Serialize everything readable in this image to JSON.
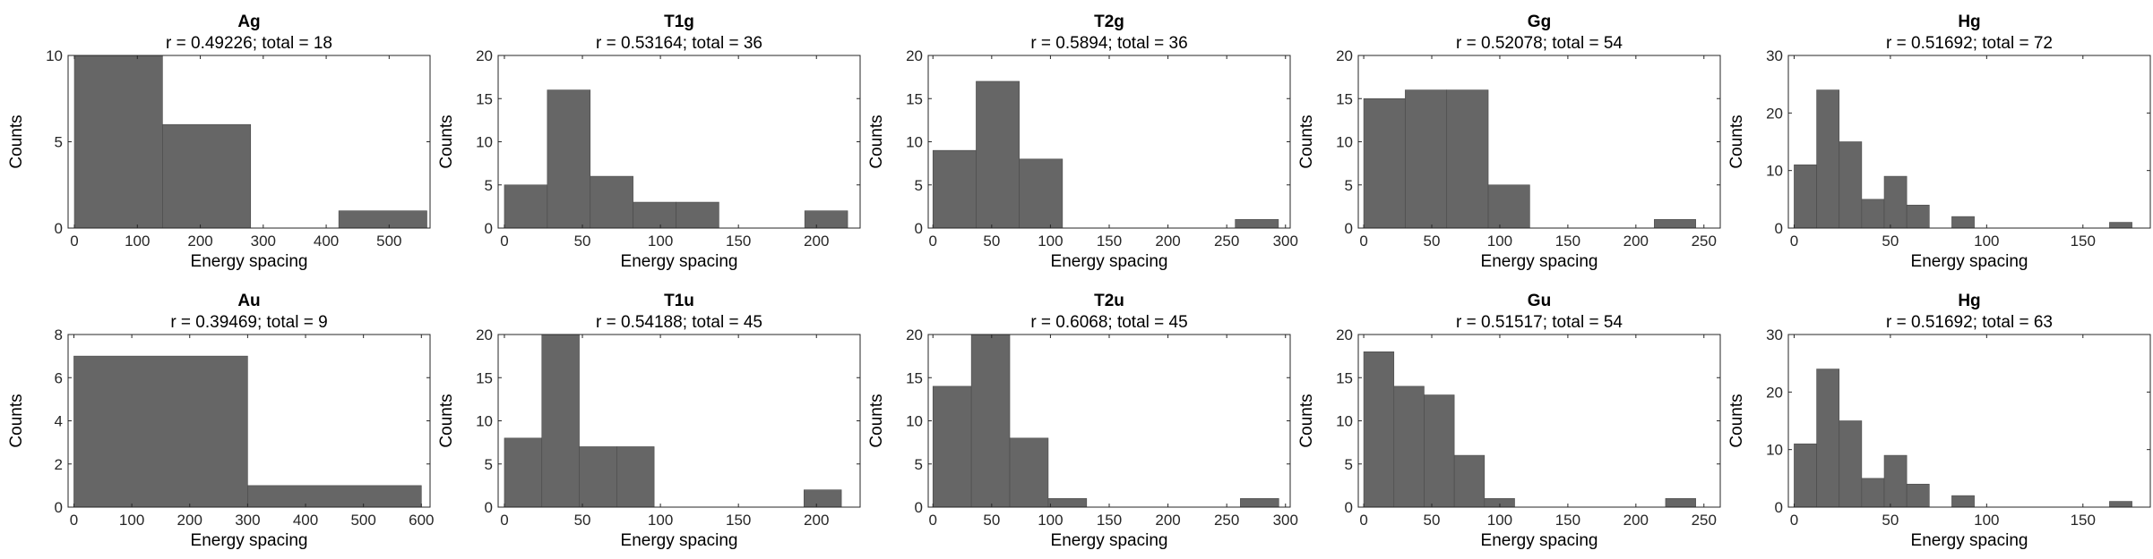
{
  "colors": {
    "bar": "#666666",
    "axis": "#262626",
    "background": "#ffffff"
  },
  "chart_data": [
    {
      "type": "bar",
      "title": "Ag",
      "subtitle": "r = 0.49226; total = 18",
      "xlabel": "Energy spacing",
      "ylabel": "Counts",
      "xlim": [
        -10,
        565
      ],
      "ylim": [
        0,
        10
      ],
      "xticks": [
        0,
        100,
        200,
        300,
        400,
        500
      ],
      "yticks": [
        0,
        5,
        10
      ],
      "bin_edges": [
        0,
        140,
        280,
        420,
        560
      ],
      "values": [
        10,
        6,
        0,
        1
      ]
    },
    {
      "type": "bar",
      "title": "T1g",
      "subtitle": "r = 0.53164; total = 36",
      "xlabel": "Energy spacing",
      "ylabel": "Counts",
      "xlim": [
        -4,
        228
      ],
      "ylim": [
        0,
        20
      ],
      "xticks": [
        0,
        50,
        100,
        150,
        200
      ],
      "yticks": [
        0,
        5,
        10,
        15,
        20
      ],
      "bin_edges": [
        0,
        27.5,
        55,
        82.5,
        110,
        137.5,
        165,
        192.5,
        220
      ],
      "values": [
        5,
        16,
        6,
        3,
        3,
        0,
        0,
        2
      ]
    },
    {
      "type": "bar",
      "title": "T2g",
      "subtitle": "r = 0.5894; total = 36",
      "xlabel": "Energy spacing",
      "ylabel": "Counts",
      "xlim": [
        -4,
        304
      ],
      "ylim": [
        0,
        20
      ],
      "xticks": [
        0,
        50,
        100,
        150,
        200,
        250,
        300
      ],
      "yticks": [
        0,
        5,
        10,
        15,
        20
      ],
      "bin_edges": [
        0,
        36.75,
        73.5,
        110.25,
        147,
        183.75,
        220.5,
        257.25,
        294
      ],
      "values": [
        9,
        17,
        8,
        0,
        0,
        0,
        0,
        1
      ]
    },
    {
      "type": "bar",
      "title": "Gg",
      "subtitle": "r = 0.52078; total = 54",
      "xlabel": "Energy spacing",
      "ylabel": "Counts",
      "xlim": [
        -4,
        262
      ],
      "ylim": [
        0,
        20
      ],
      "xticks": [
        0,
        50,
        100,
        150,
        200,
        250
      ],
      "yticks": [
        0,
        5,
        10,
        15,
        20
      ],
      "bin_edges": [
        0,
        30.5,
        61,
        91.5,
        122,
        152.5,
        183,
        213.5,
        244
      ],
      "values": [
        15,
        16,
        16,
        5,
        0,
        0,
        0,
        1
      ]
    },
    {
      "type": "bar",
      "title": "Hg",
      "subtitle": "r = 0.51692; total = 72",
      "xlabel": "Energy spacing",
      "ylabel": "Counts",
      "xlim": [
        -3,
        185
      ],
      "ylim": [
        0,
        30
      ],
      "xticks": [
        0,
        50,
        100,
        150
      ],
      "yticks": [
        0,
        10,
        20,
        30
      ],
      "bin_edges": [
        0,
        11.7,
        23.4,
        35.1,
        46.8,
        58.5,
        70.2,
        81.9,
        93.6,
        105.3,
        117,
        128.7,
        140.4,
        152.1,
        163.8,
        175.5
      ],
      "values": [
        11,
        24,
        15,
        5,
        9,
        4,
        0,
        2,
        0,
        0,
        0,
        0,
        0,
        0,
        1
      ]
    },
    {
      "type": "bar",
      "title": "Au",
      "subtitle": "r = 0.39469; total = 9",
      "xlabel": "Energy spacing",
      "ylabel": "Counts",
      "xlim": [
        -10,
        615
      ],
      "ylim": [
        0,
        8
      ],
      "xticks": [
        0,
        100,
        200,
        300,
        400,
        500,
        600
      ],
      "yticks": [
        0,
        2,
        4,
        6,
        8
      ],
      "bin_edges": [
        0,
        300,
        600
      ],
      "values": [
        7,
        1
      ]
    },
    {
      "type": "bar",
      "title": "T1u",
      "subtitle": "r = 0.54188; total = 45",
      "xlabel": "Energy spacing",
      "ylabel": "Counts",
      "xlim": [
        -4,
        228
      ],
      "ylim": [
        0,
        20
      ],
      "xticks": [
        0,
        50,
        100,
        150,
        200
      ],
      "yticks": [
        0,
        5,
        10,
        15,
        20
      ],
      "bin_edges": [
        0,
        24,
        48,
        72,
        96,
        120,
        144,
        168,
        192,
        216
      ],
      "values": [
        8,
        20,
        7,
        7,
        0,
        0,
        0,
        0,
        2
      ]
    },
    {
      "type": "bar",
      "title": "T2u",
      "subtitle": "r = 0.6068; total = 45",
      "xlabel": "Energy spacing",
      "ylabel": "Counts",
      "xlim": [
        -4,
        304
      ],
      "ylim": [
        0,
        20
      ],
      "xticks": [
        0,
        50,
        100,
        150,
        200,
        250,
        300
      ],
      "yticks": [
        0,
        5,
        10,
        15,
        20
      ],
      "bin_edges": [
        0,
        32.7,
        65.4,
        98.1,
        130.8,
        163.5,
        196.2,
        228.9,
        261.6,
        294.3
      ],
      "values": [
        14,
        20,
        8,
        1,
        0,
        0,
        0,
        0,
        1
      ]
    },
    {
      "type": "bar",
      "title": "Gu",
      "subtitle": "r = 0.51517; total = 54",
      "xlabel": "Energy spacing",
      "ylabel": "Counts",
      "xlim": [
        -4,
        262
      ],
      "ylim": [
        0,
        20
      ],
      "xticks": [
        0,
        50,
        100,
        150,
        200,
        250
      ],
      "yticks": [
        0,
        5,
        10,
        15,
        20
      ],
      "bin_edges": [
        0,
        22.18,
        44.36,
        66.54,
        88.72,
        110.9,
        133.08,
        155.26,
        177.44,
        199.62,
        221.8,
        243.98
      ],
      "values": [
        18,
        14,
        13,
        6,
        1,
        0,
        0,
        0,
        0,
        0,
        1
      ]
    },
    {
      "type": "bar",
      "title": "Hg",
      "subtitle": "r = 0.51692; total = 63",
      "xlabel": "Energy spacing",
      "ylabel": "Counts",
      "xlim": [
        -3,
        185
      ],
      "ylim": [
        0,
        30
      ],
      "xticks": [
        0,
        50,
        100,
        150
      ],
      "yticks": [
        0,
        10,
        20,
        30
      ],
      "bin_edges": [
        0,
        11.7,
        23.4,
        35.1,
        46.8,
        58.5,
        70.2,
        81.9,
        93.6,
        105.3,
        117,
        128.7,
        140.4,
        152.1,
        163.8,
        175.5
      ],
      "values": [
        11,
        24,
        15,
        5,
        9,
        4,
        0,
        2,
        0,
        0,
        0,
        0,
        0,
        0,
        1
      ]
    }
  ]
}
